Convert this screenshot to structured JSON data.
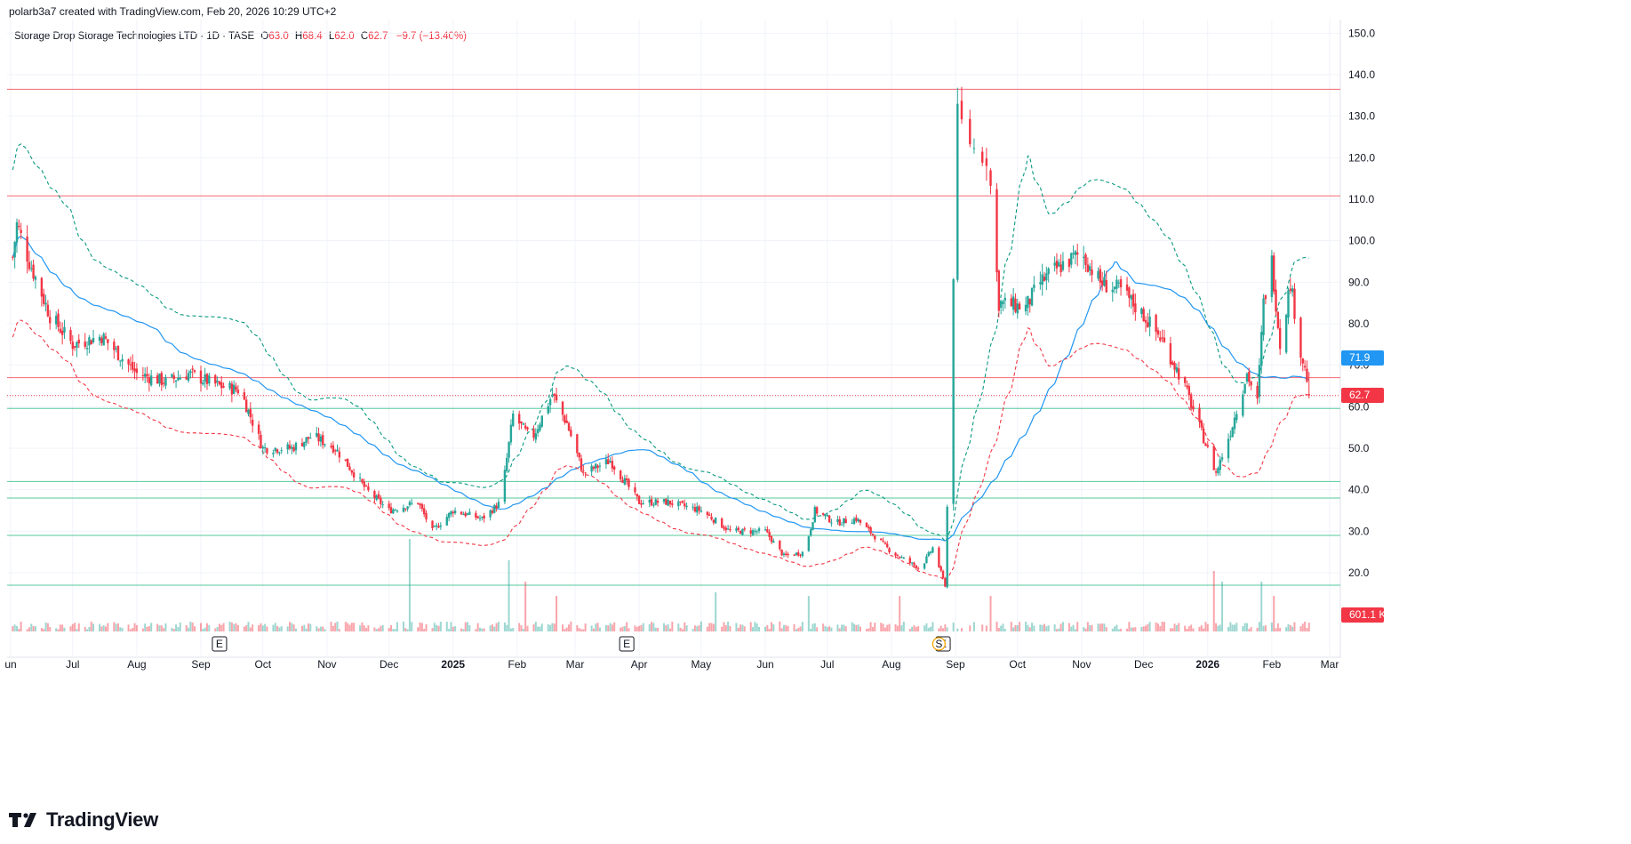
{
  "header": {
    "credit": "polarb3a7 created with TradingView.com, Feb 20, 2026 10:29 UTC+2",
    "symbol": "Storage Drop Storage Technologies LTD · 1D · TASE",
    "o_label": "O",
    "o_value": "63.0",
    "h_label": "H",
    "h_value": "68.4",
    "l_label": "L",
    "l_value": "62.0",
    "c_label": "C",
    "c_value": "62.7",
    "change": "−9.7 (−13.40%)"
  },
  "brand": {
    "name": "TradingView",
    "icon": "tradingview-logo-icon"
  },
  "colors": {
    "up": "#26a69a",
    "down": "#f23645",
    "ma": "#2196f3",
    "band_upper": "#089981",
    "band_lower": "#f23645",
    "support": "#2ebd85",
    "resistance": "#f23645",
    "grid": "#f0f3fa"
  },
  "chart_data": {
    "type": "candlestick",
    "ylim": [
      10,
      155
    ],
    "y_ticks": [
      "150.0",
      "140.0",
      "130.0",
      "120.0",
      "110.0",
      "100.0",
      "90.0",
      "80.0",
      "70.0",
      "60.0",
      "50.0",
      "40.0",
      "30.0",
      "20.0"
    ],
    "x_labels": [
      {
        "label": "un",
        "date": "2024-06-01"
      },
      {
        "label": "Jul",
        "date": "2024-07-01"
      },
      {
        "label": "Aug",
        "date": "2024-08-01"
      },
      {
        "label": "Sep",
        "date": "2024-09-01"
      },
      {
        "label": "Oct",
        "date": "2024-10-01"
      },
      {
        "label": "Nov",
        "date": "2024-11-01"
      },
      {
        "label": "Dec",
        "date": "2024-12-01"
      },
      {
        "label": "2025",
        "date": "2025-01-01"
      },
      {
        "label": "Feb",
        "date": "2025-02-01"
      },
      {
        "label": "Mar",
        "date": "2025-03-01"
      },
      {
        "label": "Apr",
        "date": "2025-04-01"
      },
      {
        "label": "May",
        "date": "2025-05-01"
      },
      {
        "label": "Jun",
        "date": "2025-06-01"
      },
      {
        "label": "Jul",
        "date": "2025-07-01"
      },
      {
        "label": "Aug",
        "date": "2025-08-01"
      },
      {
        "label": "Sep",
        "date": "2025-09-01"
      },
      {
        "label": "Oct",
        "date": "2025-10-01"
      },
      {
        "label": "Nov",
        "date": "2025-11-01"
      },
      {
        "label": "Dec",
        "date": "2025-12-01"
      },
      {
        "label": "2026",
        "date": "2026-01-01"
      },
      {
        "label": "Feb",
        "date": "2026-02-01"
      },
      {
        "label": "Mar",
        "date": "2026-03-01"
      }
    ],
    "resistance_levels": [
      136.5,
      110.8,
      67.0
    ],
    "support_levels": [
      59.6,
      42.0,
      38.0,
      29.0,
      17.0
    ],
    "price_line": 62.7,
    "price_badge": "62.7",
    "ma_badge": "71.9",
    "volume_badge": "601.1 K",
    "event_markers": [
      {
        "label": "E",
        "date": "2024-09-10"
      },
      {
        "label": "E",
        "date": "2025-03-26"
      },
      {
        "label": "E",
        "date": "2025-08-26"
      },
      {
        "label": "S",
        "date": "2025-08-24"
      }
    ],
    "price_anchors": [
      [
        "2024-06-01",
        92
      ],
      [
        "2024-06-04",
        104
      ],
      [
        "2024-06-10",
        95
      ],
      [
        "2024-06-20",
        82
      ],
      [
        "2024-07-01",
        75
      ],
      [
        "2024-07-15",
        77
      ],
      [
        "2024-08-01",
        68
      ],
      [
        "2024-08-15",
        66
      ],
      [
        "2024-08-26",
        68
      ],
      [
        "2024-09-10",
        65
      ],
      [
        "2024-09-20",
        64
      ],
      [
        "2024-10-01",
        50
      ],
      [
        "2024-10-15",
        50
      ],
      [
        "2024-10-25",
        53
      ],
      [
        "2024-11-05",
        50
      ],
      [
        "2024-11-20",
        40
      ],
      [
        "2024-12-01",
        35
      ],
      [
        "2024-12-15",
        37
      ],
      [
        "2024-12-22",
        30
      ],
      [
        "2025-01-01",
        35
      ],
      [
        "2025-01-15",
        33
      ],
      [
        "2025-01-24",
        37
      ],
      [
        "2025-01-30",
        58
      ],
      [
        "2025-02-08",
        52
      ],
      [
        "2025-02-18",
        63
      ],
      [
        "2025-02-25",
        56
      ],
      [
        "2025-03-05",
        44
      ],
      [
        "2025-03-18",
        47
      ],
      [
        "2025-04-01",
        37
      ],
      [
        "2025-04-15",
        37
      ],
      [
        "2025-05-01",
        35
      ],
      [
        "2025-05-15",
        30
      ],
      [
        "2025-06-01",
        30
      ],
      [
        "2025-06-10",
        24
      ],
      [
        "2025-06-20",
        25
      ],
      [
        "2025-06-25",
        35
      ],
      [
        "2025-07-05",
        32
      ],
      [
        "2025-07-15",
        33
      ],
      [
        "2025-08-01",
        25
      ],
      [
        "2025-08-15",
        21
      ],
      [
        "2025-08-21",
        26
      ],
      [
        "2025-08-27",
        17
      ],
      [
        "2025-09-02",
        130
      ],
      [
        "2025-09-10",
        122
      ],
      [
        "2025-09-17",
        120
      ],
      [
        "2025-09-22",
        85
      ],
      [
        "2025-10-05",
        84
      ],
      [
        "2025-10-12",
        90
      ],
      [
        "2025-10-22",
        94
      ],
      [
        "2025-11-01",
        97
      ],
      [
        "2025-11-10",
        90
      ],
      [
        "2025-11-20",
        88
      ],
      [
        "2025-12-01",
        82
      ],
      [
        "2025-12-10",
        76
      ],
      [
        "2025-12-20",
        66
      ],
      [
        "2025-12-26",
        58
      ],
      [
        "2026-01-05",
        44
      ],
      [
        "2026-01-12",
        54
      ],
      [
        "2026-01-20",
        68
      ],
      [
        "2026-01-25",
        61
      ],
      [
        "2026-01-28",
        85
      ],
      [
        "2026-02-01",
        95
      ],
      [
        "2026-02-05",
        75
      ],
      [
        "2026-02-10",
        90
      ],
      [
        "2026-02-15",
        73
      ],
      [
        "2026-02-20",
        62.7
      ]
    ],
    "volume_spikes": [
      [
        "2024-12-11",
        26
      ],
      [
        "2024-12-20",
        20
      ],
      [
        "2025-01-28",
        20
      ],
      [
        "2025-02-05",
        14
      ],
      [
        "2025-02-14",
        11
      ],
      [
        "2025-02-20",
        10
      ],
      [
        "2025-05-08",
        11
      ],
      [
        "2025-06-22",
        10
      ],
      [
        "2025-08-05",
        10
      ],
      [
        "2025-08-22",
        14
      ],
      [
        "2025-09-18",
        10
      ],
      [
        "2026-01-04",
        17
      ],
      [
        "2026-01-08",
        14
      ],
      [
        "2026-01-27",
        14
      ],
      [
        "2026-01-30",
        38
      ],
      [
        "2026-02-02",
        10
      ]
    ]
  }
}
